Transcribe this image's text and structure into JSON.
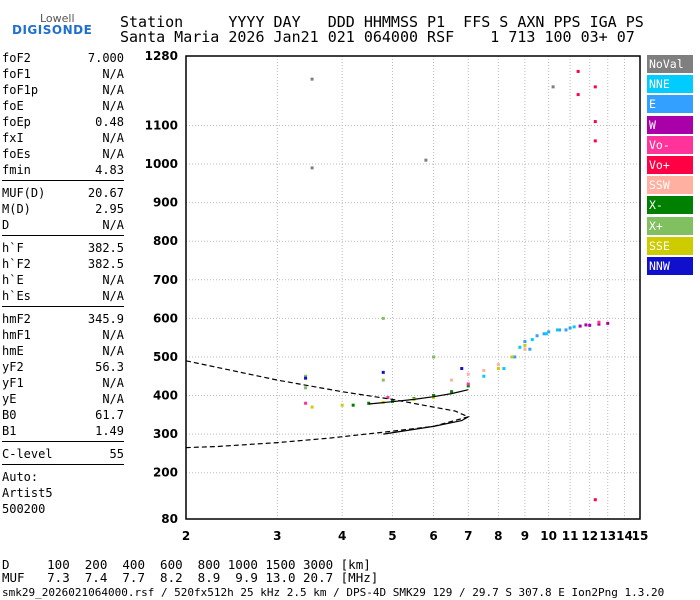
{
  "logo": {
    "top": "Lowell",
    "main": "DIGISONDE"
  },
  "header": {
    "line1": "Station     YYYY DAY   DDD HHMMSS P1  FFS S AXN PPS IGA PS",
    "line2": "Santa Maria 2026 Jan21 021 064000 RSF    1 713 100 03+ 07"
  },
  "params_a": [
    {
      "k": "foF2",
      "v": "7.000"
    },
    {
      "k": "foF1",
      "v": "N/A"
    },
    {
      "k": "foF1p",
      "v": "N/A"
    },
    {
      "k": "foE",
      "v": "N/A"
    },
    {
      "k": "foEp",
      "v": "0.48"
    },
    {
      "k": "fxI",
      "v": "N/A"
    },
    {
      "k": "foEs",
      "v": "N/A"
    },
    {
      "k": "fmin",
      "v": "4.83"
    }
  ],
  "params_b": [
    {
      "k": "MUF(D)",
      "v": "20.67"
    },
    {
      "k": "M(D)",
      "v": "2.95"
    },
    {
      "k": "D",
      "v": "N/A"
    }
  ],
  "params_c": [
    {
      "k": "h`F",
      "v": "382.5"
    },
    {
      "k": "h`F2",
      "v": "382.5"
    },
    {
      "k": "h`E",
      "v": "N/A"
    },
    {
      "k": "h`Es",
      "v": "N/A"
    }
  ],
  "params_d": [
    {
      "k": "hmF2",
      "v": "345.9"
    },
    {
      "k": "hmF1",
      "v": "N/A"
    },
    {
      "k": "hmE",
      "v": "N/A"
    },
    {
      "k": "yF2",
      "v": "56.3"
    },
    {
      "k": "yF1",
      "v": "N/A"
    },
    {
      "k": "yE",
      "v": "N/A"
    },
    {
      "k": "B0",
      "v": "61.7"
    },
    {
      "k": "B1",
      "v": "1.49"
    }
  ],
  "params_e": [
    {
      "k": "C-level",
      "v": "55"
    }
  ],
  "auto": {
    "label": "Auto:",
    "software": "Artist5",
    "version": "500200"
  },
  "legend": [
    {
      "label": "NoVal",
      "color": "#7f7f7f"
    },
    {
      "label": "NNE",
      "color": "#00ccff"
    },
    {
      "label": "E",
      "color": "#33a0ff"
    },
    {
      "label": "W",
      "color": "#aa00aa"
    },
    {
      "label": "Vo-",
      "color": "#ff3399"
    },
    {
      "label": "Vo+",
      "color": "#ff0044"
    },
    {
      "label": "SSW",
      "color": "#ffb0a0"
    },
    {
      "label": "X-",
      "color": "#008000"
    },
    {
      "label": "X+",
      "color": "#80c060"
    },
    {
      "label": "SSE",
      "color": "#cccc00"
    },
    {
      "label": "NNW",
      "color": "#1010cc"
    }
  ],
  "bottom": {
    "line1": "D     100  200  400  600  800 1000 1500 3000 [km]",
    "line2": "MUF   7.3  7.4  7.7  8.2  8.9  9.9 13.0 20.7 [MHz]"
  },
  "footer": "smk29_2026021064000.rsf / 520fx512h 25 kHz 2.5 km / DPS-4D SMK29 129 / 29.7 S 307.8 E Ion2Png 1.3.20",
  "chart_data": {
    "type": "scatter",
    "title": "",
    "xlabel": "",
    "ylabel": "",
    "xlim": [
      2,
      15
    ],
    "ylim": [
      80,
      1280
    ],
    "x_ticks": [
      2,
      3,
      4,
      5,
      6,
      7,
      8,
      9,
      10,
      11,
      12,
      13,
      14,
      15
    ],
    "y_ticks": [
      80,
      200,
      300,
      400,
      500,
      600,
      700,
      800,
      900,
      1000,
      1100,
      1280
    ],
    "grid": true,
    "x_scale": "log",
    "legend_placement": "right",
    "series": [
      {
        "name": "E",
        "color": "#33a0ff",
        "points": [
          [
            8.6,
            500
          ],
          [
            9.0,
            540
          ],
          [
            9.5,
            555
          ],
          [
            10.0,
            565
          ],
          [
            10.5,
            570
          ],
          [
            11.0,
            575
          ],
          [
            9.2,
            520
          ],
          [
            9.8,
            560
          ],
          [
            10.8,
            570
          ]
        ]
      },
      {
        "name": "NNE",
        "color": "#00ccff",
        "points": [
          [
            8.8,
            525
          ],
          [
            9.3,
            545
          ],
          [
            9.9,
            560
          ],
          [
            10.4,
            570
          ],
          [
            11.2,
            578
          ],
          [
            8.2,
            470
          ],
          [
            7.5,
            450
          ]
        ]
      },
      {
        "name": "W",
        "color": "#aa00aa",
        "points": [
          [
            11.5,
            580
          ],
          [
            12.0,
            582
          ],
          [
            12.5,
            585
          ],
          [
            13.0,
            587
          ],
          [
            11.8,
            583
          ]
        ]
      },
      {
        "name": "X-",
        "color": "#008000",
        "points": [
          [
            5.0,
            385
          ],
          [
            5.5,
            392
          ],
          [
            6.0,
            400
          ],
          [
            6.5,
            410
          ],
          [
            7.0,
            425
          ],
          [
            4.2,
            375
          ],
          [
            4.5,
            380
          ]
        ]
      },
      {
        "name": "SSE",
        "color": "#cccc00",
        "points": [
          [
            3.5,
            370
          ],
          [
            4.0,
            375
          ],
          [
            4.8,
            382
          ],
          [
            5.5,
            390
          ],
          [
            6.0,
            395
          ],
          [
            8.0,
            470
          ],
          [
            8.5,
            500
          ],
          [
            9.0,
            530
          ]
        ]
      },
      {
        "name": "SSW",
        "color": "#ffb0a0",
        "points": [
          [
            6.5,
            440
          ],
          [
            7.0,
            455
          ],
          [
            7.5,
            465
          ],
          [
            8.0,
            480
          ],
          [
            9.0,
            520
          ]
        ]
      },
      {
        "name": "Vo+",
        "color": "#ff0044",
        "points": [
          [
            11.4,
            1240
          ],
          [
            11.4,
            1180
          ],
          [
            12.3,
            1200
          ],
          [
            12.3,
            1110
          ],
          [
            12.3,
            1060
          ],
          [
            12.3,
            130
          ]
        ]
      },
      {
        "name": "X+",
        "color": "#80c060",
        "points": [
          [
            3.4,
            420
          ],
          [
            3.4,
            450
          ],
          [
            4.8,
            440
          ],
          [
            4.8,
            600
          ],
          [
            6.0,
            500
          ]
        ]
      },
      {
        "name": "Vo-",
        "color": "#ff3399",
        "points": [
          [
            3.4,
            380
          ],
          [
            4.9,
            395
          ],
          [
            7.0,
            430
          ],
          [
            12.5,
            590
          ]
        ]
      },
      {
        "name": "NoVal",
        "color": "#7f7f7f",
        "points": [
          [
            3.5,
            1220
          ],
          [
            5.8,
            1010
          ],
          [
            10.2,
            1200
          ],
          [
            3.5,
            990
          ]
        ]
      },
      {
        "name": "NNW",
        "color": "#1010cc",
        "points": [
          [
            3.4,
            445
          ],
          [
            4.8,
            460
          ],
          [
            6.8,
            470
          ]
        ]
      }
    ],
    "profile_lines": [
      {
        "style": "dashed",
        "points": [
          [
            2.0,
            490
          ],
          [
            3.0,
            440
          ],
          [
            4.0,
            410
          ],
          [
            5.0,
            390
          ],
          [
            6.0,
            370
          ],
          [
            6.6,
            360
          ],
          [
            7.0,
            345
          ],
          [
            6.0,
            320
          ],
          [
            4.8,
            305
          ],
          [
            3.8,
            290
          ],
          [
            3.0,
            278
          ],
          [
            2.3,
            268
          ],
          [
            2.0,
            265
          ]
        ]
      },
      {
        "style": "solid",
        "points": [
          [
            4.8,
            300
          ],
          [
            6.0,
            320
          ],
          [
            6.8,
            335
          ],
          [
            7.0,
            345
          ]
        ]
      },
      {
        "style": "solid",
        "points": [
          [
            4.5,
            378
          ],
          [
            5.0,
            384
          ],
          [
            5.5,
            390
          ],
          [
            6.0,
            397
          ],
          [
            6.5,
            405
          ],
          [
            7.0,
            415
          ]
        ]
      }
    ]
  }
}
